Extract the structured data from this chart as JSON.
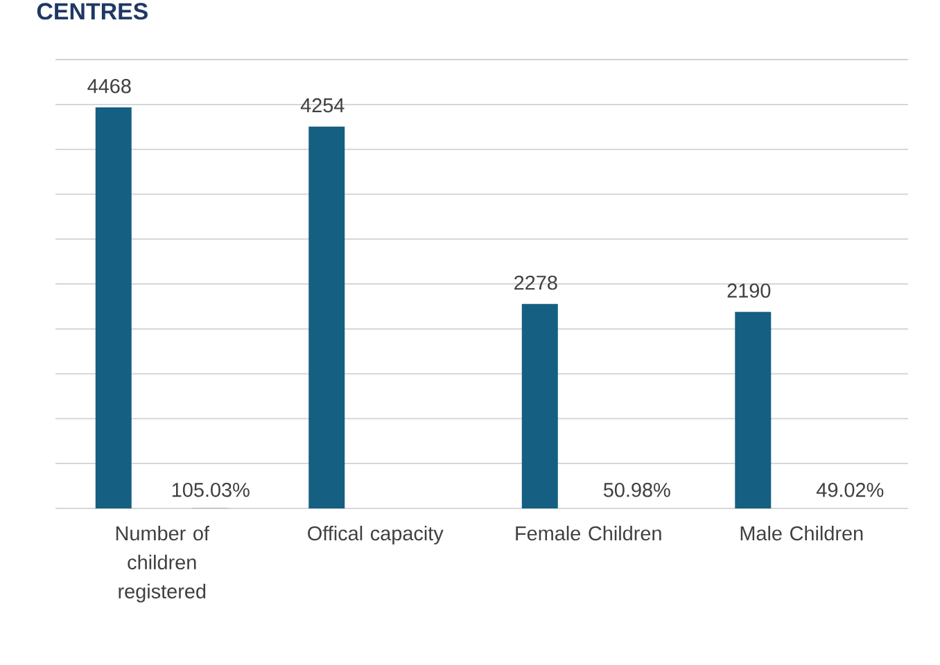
{
  "chart_data": {
    "type": "bar",
    "title": "CENTRES",
    "categories": [
      "Number of children registered",
      "Offical capacity",
      "Female Children",
      "Male Children"
    ],
    "series": [
      {
        "color": "#155f83",
        "values": [
          4468,
          4254,
          2278,
          2190
        ]
      },
      {
        "color": "#155f83",
        "values": [
          1.0503,
          null,
          0.5098,
          0.4902
        ],
        "value_labels": [
          "105.03%",
          null,
          "50.98%",
          "49.02%"
        ]
      }
    ],
    "data_labels": true,
    "grid": "y",
    "tick_labels": "x",
    "ylim": [
      0,
      5000
    ],
    "yticks": [
      {
        "value": 0,
        "label": null
      },
      {
        "value": 500,
        "label": null
      },
      {
        "value": 1000,
        "label": null
      },
      {
        "value": 1500,
        "label": null
      },
      {
        "value": 2000,
        "label": null
      },
      {
        "value": 2500,
        "label": null
      },
      {
        "value": 3000,
        "label": null
      },
      {
        "value": 3500,
        "label": null
      },
      {
        "value": 4000,
        "label": null
      },
      {
        "value": 4500,
        "label": null
      },
      {
        "value": 5000,
        "label": null
      }
    ]
  }
}
